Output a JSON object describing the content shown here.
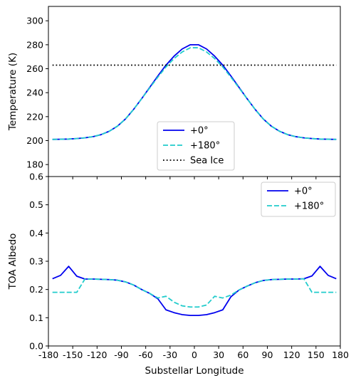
{
  "chart_data": [
    {
      "type": "line",
      "title": "",
      "xlabel": "",
      "ylabel": "Temperature (K)",
      "xlim": [
        -180,
        180
      ],
      "ylim": [
        170,
        312
      ],
      "yticks": [
        180,
        200,
        220,
        240,
        260,
        280,
        300
      ],
      "grid": false,
      "legend_position": "bottom-center",
      "x": [
        -175,
        -165,
        -155,
        -145,
        -135,
        -125,
        -115,
        -105,
        -95,
        -85,
        -75,
        -65,
        -55,
        -45,
        -35,
        -25,
        -15,
        -5,
        5,
        15,
        25,
        35,
        45,
        55,
        65,
        75,
        85,
        95,
        105,
        115,
        125,
        135,
        145,
        155,
        165,
        175
      ],
      "series": [
        {
          "name": "+0°",
          "color": "#0000ee",
          "dash": "solid",
          "values": [
            201.0,
            201.1,
            201.3,
            201.7,
            202.3,
            203.3,
            205.0,
            207.8,
            212.0,
            218.0,
            226.0,
            235.0,
            244.5,
            254.0,
            263.0,
            270.5,
            276.5,
            280.0,
            280.0,
            276.5,
            270.5,
            263.0,
            254.0,
            244.5,
            235.0,
            226.0,
            218.0,
            212.0,
            207.8,
            205.0,
            203.3,
            202.3,
            201.7,
            201.3,
            201.1,
            201.0
          ]
        },
        {
          "name": "+180°",
          "color": "#22cccc",
          "dash": "dashed",
          "values": [
            201.0,
            201.1,
            201.3,
            201.7,
            202.3,
            203.3,
            205.0,
            207.8,
            212.0,
            218.0,
            226.0,
            235.0,
            244.0,
            253.0,
            261.5,
            268.5,
            274.0,
            277.5,
            277.5,
            274.0,
            268.5,
            261.5,
            253.0,
            244.0,
            235.0,
            226.0,
            218.0,
            212.0,
            207.8,
            205.0,
            203.3,
            202.3,
            201.7,
            201.3,
            201.1,
            201.0
          ]
        },
        {
          "name": "Sea Ice",
          "color": "#000000",
          "dash": "dotted",
          "values": [
            263,
            263,
            263,
            263,
            263,
            263,
            263,
            263,
            263,
            263,
            263,
            263,
            263,
            263,
            263,
            263,
            263,
            263,
            263,
            263,
            263,
            263,
            263,
            263,
            263,
            263,
            263,
            263,
            263,
            263,
            263,
            263,
            263,
            263,
            263,
            263
          ]
        }
      ]
    },
    {
      "type": "line",
      "title": "",
      "xlabel": "Substellar Longitude",
      "ylabel": "TOA Albedo",
      "xlim": [
        -180,
        180
      ],
      "ylim": [
        0.0,
        0.6
      ],
      "xticks": [
        -180,
        -150,
        -120,
        -90,
        -60,
        -30,
        0,
        30,
        60,
        90,
        120,
        150,
        180
      ],
      "xtick_labels": [
        "-180",
        "-150",
        "-120",
        "-90",
        "-60",
        "-30",
        "0",
        "30",
        "60",
        "90",
        "120",
        "150",
        "180"
      ],
      "yticks": [
        0.0,
        0.1,
        0.2,
        0.3,
        0.4,
        0.5,
        0.6
      ],
      "ytick_labels": [
        "0.0",
        "0.1",
        "0.2",
        "0.3",
        "0.4",
        "0.5",
        "0.6"
      ],
      "grid": false,
      "legend_position": "top-right",
      "x": [
        -175,
        -165,
        -155,
        -145,
        -135,
        -125,
        -115,
        -105,
        -95,
        -85,
        -75,
        -65,
        -55,
        -45,
        -35,
        -25,
        -15,
        -5,
        5,
        15,
        25,
        35,
        45,
        55,
        65,
        75,
        85,
        95,
        105,
        115,
        125,
        135,
        145,
        155,
        165,
        175
      ],
      "series": [
        {
          "name": "+0°",
          "color": "#0000ee",
          "dash": "solid",
          "values": [
            0.238,
            0.25,
            0.282,
            0.247,
            0.237,
            0.237,
            0.236,
            0.235,
            0.233,
            0.227,
            0.216,
            0.2,
            0.186,
            0.167,
            0.128,
            0.118,
            0.111,
            0.108,
            0.108,
            0.111,
            0.118,
            0.128,
            0.174,
            0.198,
            0.212,
            0.224,
            0.232,
            0.235,
            0.236,
            0.237,
            0.237,
            0.238,
            0.248,
            0.282,
            0.25,
            0.238
          ]
        },
        {
          "name": "+180°",
          "color": "#22cccc",
          "dash": "dashed",
          "values": [
            0.19,
            0.19,
            0.19,
            0.19,
            0.237,
            0.237,
            0.236,
            0.235,
            0.233,
            0.227,
            0.216,
            0.2,
            0.186,
            0.17,
            0.176,
            0.155,
            0.142,
            0.138,
            0.138,
            0.145,
            0.176,
            0.17,
            0.18,
            0.198,
            0.212,
            0.224,
            0.232,
            0.235,
            0.236,
            0.237,
            0.237,
            0.238,
            0.19,
            0.19,
            0.19,
            0.19
          ]
        }
      ]
    }
  ]
}
